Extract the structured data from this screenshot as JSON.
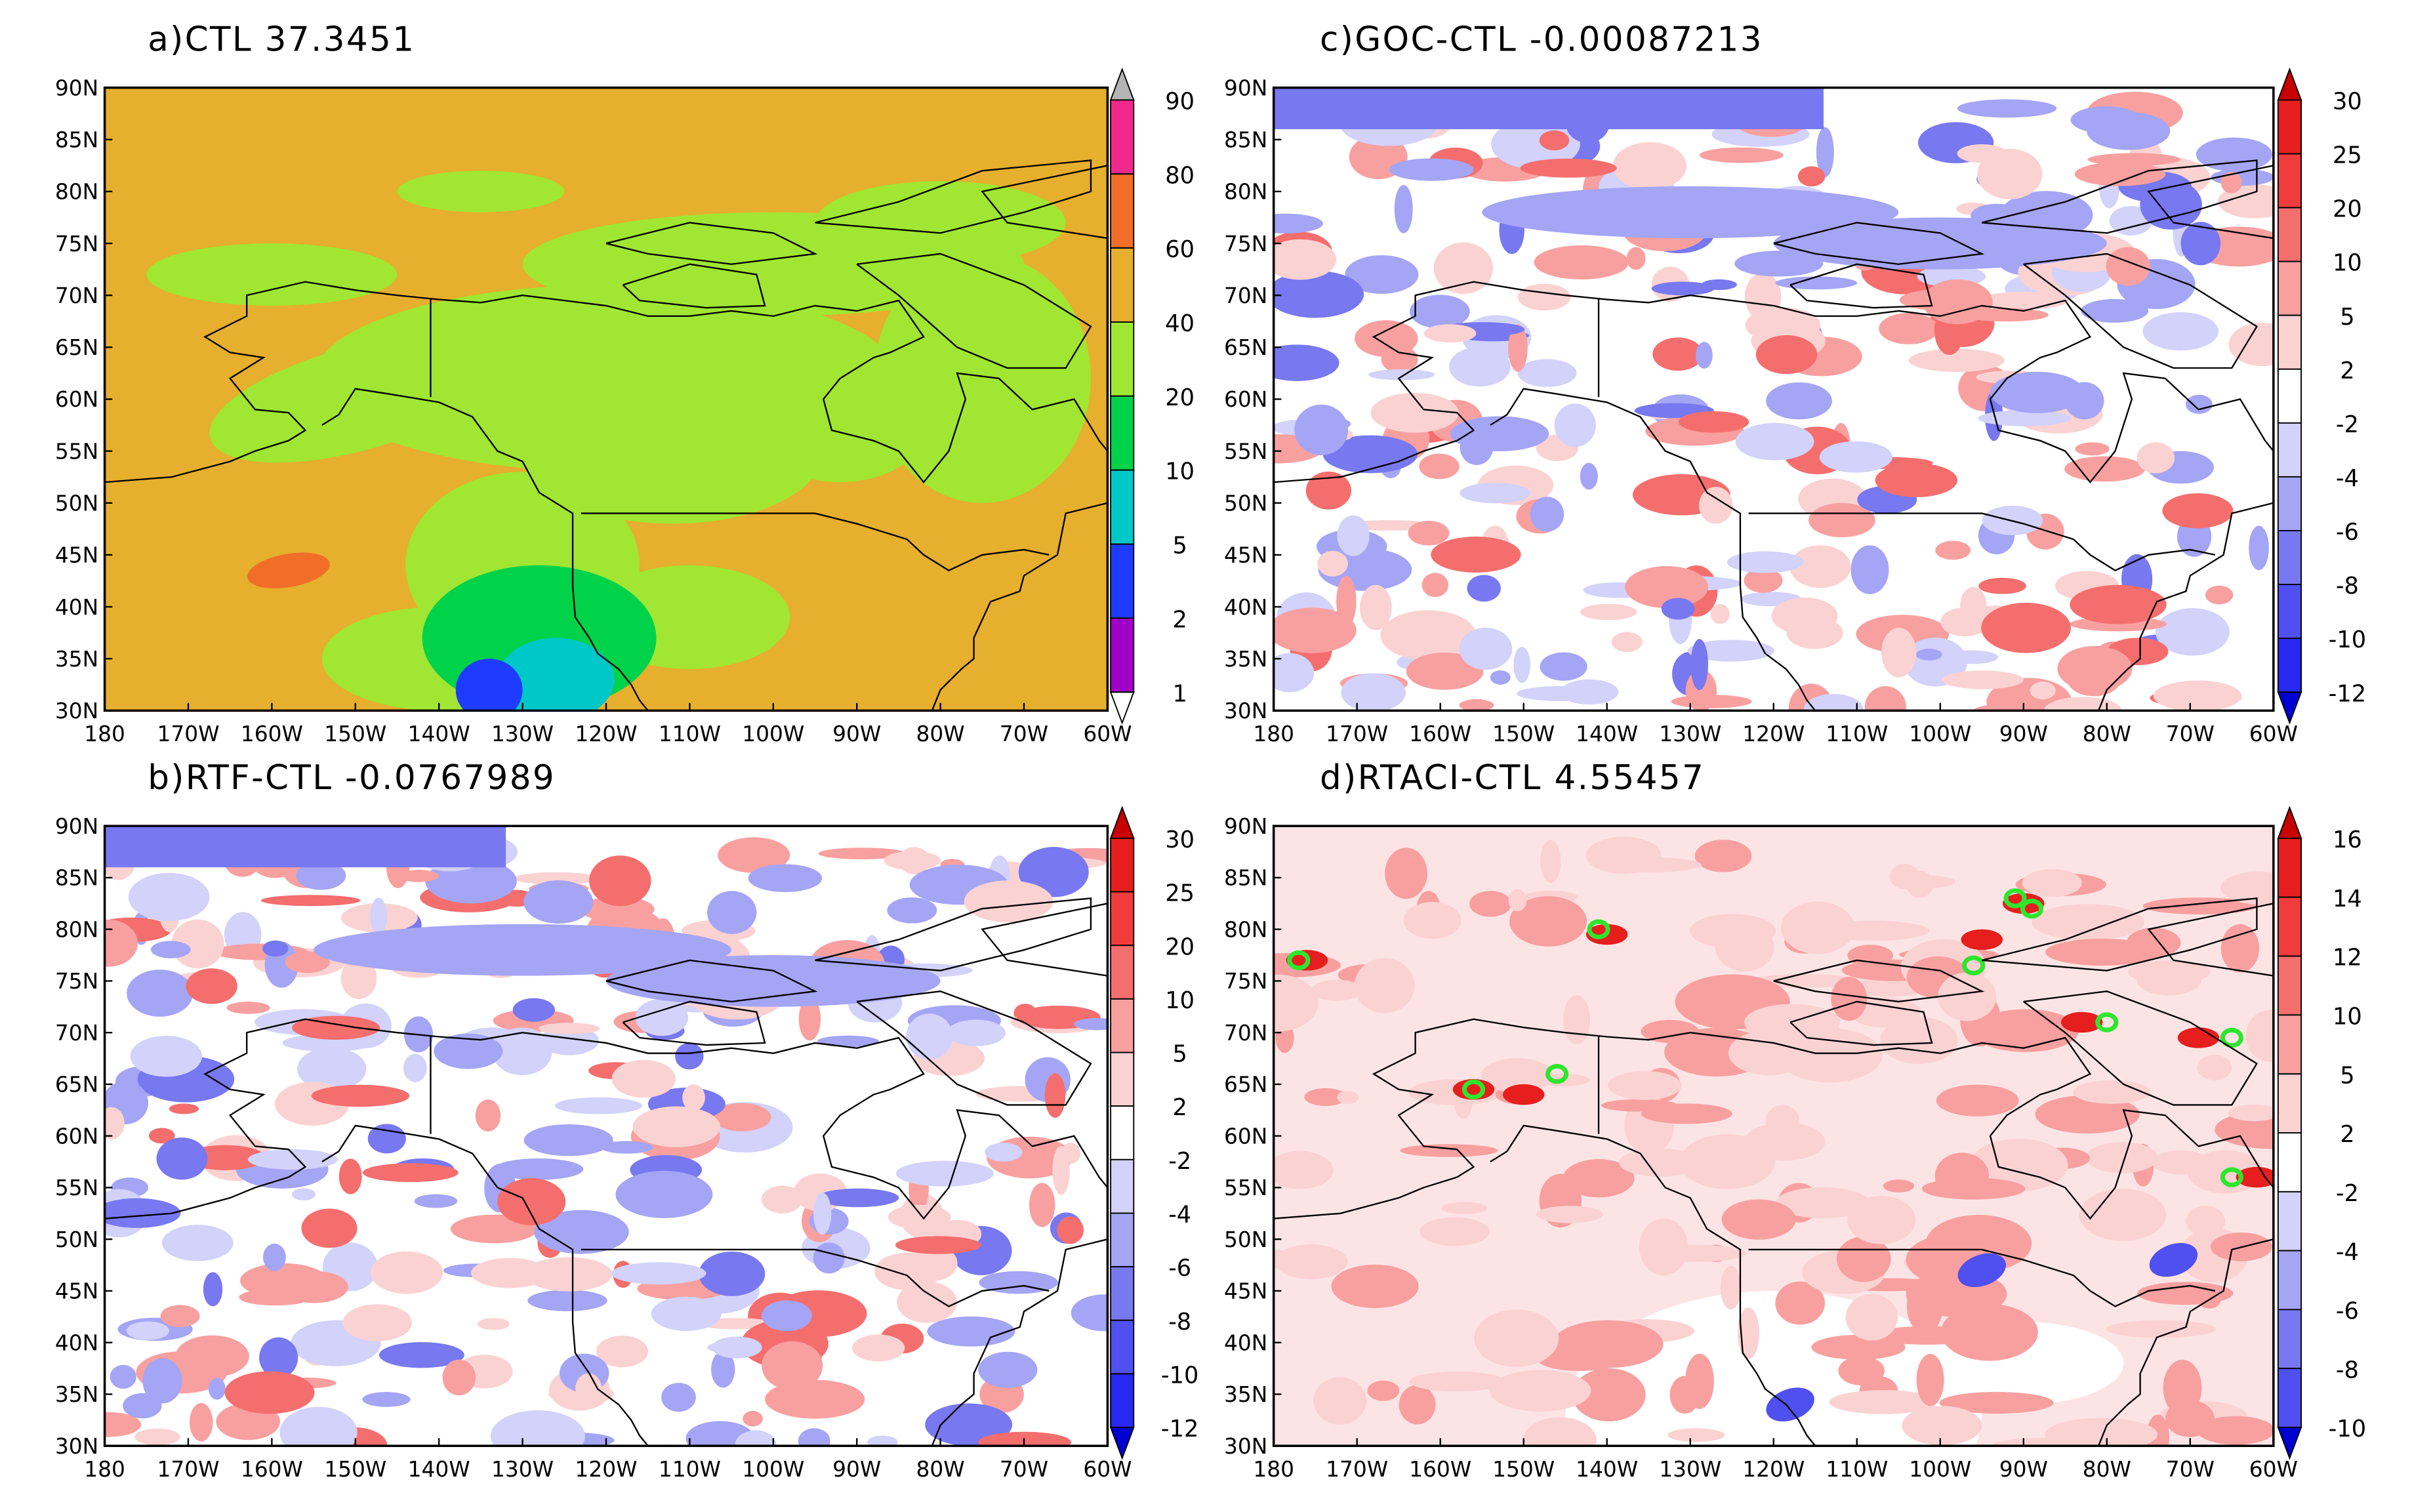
{
  "panels": [
    {
      "title": "a)CTL  37.3451",
      "y_labels": [
        "90N",
        "85N",
        "80N",
        "75N",
        "70N",
        "65N",
        "60N",
        "55N",
        "50N",
        "45N",
        "40N",
        "35N",
        "30N"
      ],
      "x_labels": [
        "180",
        "170W",
        "160W",
        "150W",
        "140W",
        "130W",
        "120W",
        "110W",
        "100W",
        "90W",
        "80W",
        "70W",
        "60W"
      ],
      "colorbar": {
        "labels": [
          "90",
          "80",
          "60",
          "40",
          "20",
          "10",
          "5",
          "2",
          "1"
        ],
        "colors": [
          "#b4b4b4",
          "#f0288c",
          "#f06e28",
          "#e6af2d",
          "#a0e632",
          "#00d24a",
          "#00c8c8",
          "#1e3cff",
          "#a000c8",
          "#ffffff"
        ]
      }
    },
    {
      "title": "c)GOC-CTL  -0.00087213",
      "y_labels": [
        "90N",
        "85N",
        "80N",
        "75N",
        "70N",
        "65N",
        "60N",
        "55N",
        "50N",
        "45N",
        "40N",
        "35N",
        "30N"
      ],
      "x_labels": [
        "180",
        "170W",
        "160W",
        "150W",
        "140W",
        "130W",
        "120W",
        "110W",
        "100W",
        "90W",
        "80W",
        "70W",
        "60W"
      ],
      "colorbar": {
        "labels": [
          "30",
          "25",
          "20",
          "10",
          "5",
          "2",
          "-2",
          "-4",
          "-6",
          "-8",
          "-10",
          "-12"
        ],
        "colors": [
          "#c80000",
          "#e61e1e",
          "#f03c3c",
          "#f56e6e",
          "#f8a0a0",
          "#fbd2d2",
          "#ffffff",
          "#d2d2fa",
          "#a5a5f5",
          "#7878f0",
          "#5050f0",
          "#2828f0",
          "#0000d2"
        ]
      }
    },
    {
      "title": "b)RTF-CTL  -0.0767989",
      "y_labels": [
        "90N",
        "85N",
        "80N",
        "75N",
        "70N",
        "65N",
        "60N",
        "55N",
        "50N",
        "45N",
        "40N",
        "35N",
        "30N"
      ],
      "x_labels": [
        "180",
        "170W",
        "160W",
        "150W",
        "140W",
        "130W",
        "120W",
        "110W",
        "100W",
        "90W",
        "80W",
        "70W",
        "60W"
      ],
      "colorbar": {
        "labels": [
          "30",
          "25",
          "20",
          "10",
          "5",
          "2",
          "-2",
          "-4",
          "-6",
          "-8",
          "-10",
          "-12"
        ],
        "colors": [
          "#c80000",
          "#e61e1e",
          "#f03c3c",
          "#f56e6e",
          "#f8a0a0",
          "#fbd2d2",
          "#ffffff",
          "#d2d2fa",
          "#a5a5f5",
          "#7878f0",
          "#5050f0",
          "#2828f0",
          "#0000d2"
        ]
      }
    },
    {
      "title": "d)RTACI-CTL  4.55457",
      "y_labels": [
        "90N",
        "85N",
        "80N",
        "75N",
        "70N",
        "65N",
        "60N",
        "55N",
        "50N",
        "45N",
        "40N",
        "35N",
        "30N"
      ],
      "x_labels": [
        "180",
        "170W",
        "160W",
        "150W",
        "140W",
        "130W",
        "120W",
        "110W",
        "100W",
        "90W",
        "80W",
        "70W",
        "60W"
      ],
      "colorbar": {
        "labels": [
          "16",
          "14",
          "12",
          "10",
          "5",
          "2",
          "-2",
          "-4",
          "-6",
          "-8",
          "-10"
        ],
        "colors": [
          "#c80000",
          "#e61e1e",
          "#f03c3c",
          "#f56e6e",
          "#f8a0a0",
          "#fbd2d2",
          "#ffffff",
          "#d2d2fa",
          "#a5a5f5",
          "#7878f0",
          "#5050f0",
          "#0000d2"
        ]
      }
    }
  ]
}
